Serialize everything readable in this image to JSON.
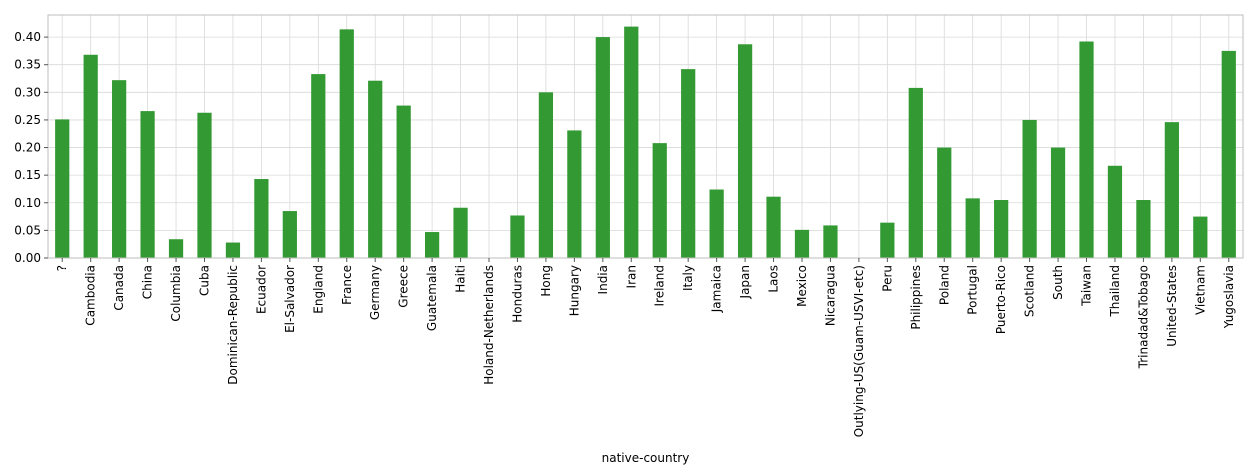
{
  "chart_data": {
    "type": "bar",
    "xlabel": "native-country",
    "ylabel": "",
    "ylim": [
      0,
      0.44
    ],
    "yticks": [
      0.0,
      0.05,
      0.1,
      0.15,
      0.2,
      0.25,
      0.3,
      0.35,
      0.4
    ],
    "ytick_labels": [
      "0.00",
      "0.05",
      "0.10",
      "0.15",
      "0.20",
      "0.25",
      "0.30",
      "0.35",
      "0.40"
    ],
    "grid": true,
    "bar_color": "#339933",
    "categories": [
      "?",
      "Cambodia",
      "Canada",
      "China",
      "Columbia",
      "Cuba",
      "Dominican-Republic",
      "Ecuador",
      "El-Salvador",
      "England",
      "France",
      "Germany",
      "Greece",
      "Guatemala",
      "Haiti",
      "Holand-Netherlands",
      "Honduras",
      "Hong",
      "Hungary",
      "India",
      "Iran",
      "Ireland",
      "Italy",
      "Jamaica",
      "Japan",
      "Laos",
      "Mexico",
      "Nicaragua",
      "Outlying-US(Guam-USVI-etc)",
      "Peru",
      "Philippines",
      "Poland",
      "Portugal",
      "Puerto-Rico",
      "Scotland",
      "South",
      "Taiwan",
      "Thailand",
      "Trinadad&Tobago",
      "United-States",
      "Vietnam",
      "Yugoslavia"
    ],
    "values": [
      0.251,
      0.368,
      0.322,
      0.266,
      0.034,
      0.263,
      0.028,
      0.143,
      0.085,
      0.333,
      0.414,
      0.321,
      0.276,
      0.047,
      0.091,
      0.0,
      0.077,
      0.3,
      0.231,
      0.4,
      0.419,
      0.208,
      0.342,
      0.124,
      0.387,
      0.111,
      0.051,
      0.059,
      0.0,
      0.064,
      0.308,
      0.2,
      0.108,
      0.105,
      0.25,
      0.2,
      0.392,
      0.167,
      0.105,
      0.246,
      0.075,
      0.375
    ]
  }
}
